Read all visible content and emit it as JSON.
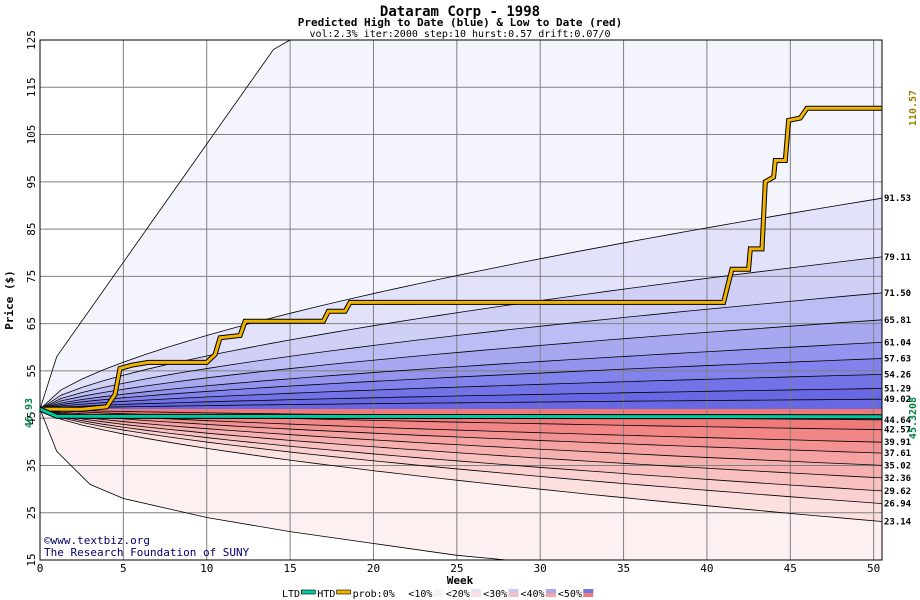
{
  "chart_data": {
    "type": "line",
    "title": "Dataram Corp - 1998",
    "subtitle": "Predicted High to Date (blue) &  Low to Date (red)",
    "params": "vol:2.3% iter:2000 step:10 hurst:0.57 drift:0.07/0",
    "xlabel": "Week",
    "ylabel": "Price ($)",
    "xlim": [
      0,
      50.5
    ],
    "ylim": [
      15,
      125
    ],
    "xticks": [
      0,
      5,
      10,
      15,
      20,
      25,
      30,
      35,
      40,
      45,
      50
    ],
    "yticks": [
      15,
      25,
      35,
      45,
      55,
      65,
      75,
      85,
      95,
      105,
      115,
      125
    ],
    "grid": true,
    "start_price": 46.93,
    "start_label": "46.93",
    "end_high_label": "110.57",
    "end_low_label": "45.3208",
    "high_quantiles": [
      49.02,
      51.29,
      54.26,
      57.63,
      61.04,
      65.81,
      71.5,
      79.11,
      91.53
    ],
    "high_quantile_labels": [
      "49.02",
      "51.29",
      "54.26",
      "57.63",
      "61.04",
      "65.81",
      "71.50",
      "79.11",
      "91.53"
    ],
    "low_quantiles": [
      44.64,
      42.57,
      39.91,
      37.61,
      35.02,
      32.36,
      29.62,
      26.94,
      23.14
    ],
    "low_quantile_labels": [
      "44.64",
      "42.57",
      "39.91",
      "37.61",
      "35.02",
      "32.36",
      "29.62",
      "26.94",
      "23.14"
    ],
    "outer_high_path": [
      [
        0,
        46.93
      ],
      [
        1,
        58
      ],
      [
        3,
        68
      ],
      [
        5,
        78
      ],
      [
        7,
        88
      ],
      [
        9,
        98
      ],
      [
        11,
        108
      ],
      [
        13,
        118
      ],
      [
        14,
        123
      ],
      [
        15,
        125
      ]
    ],
    "outer_low_path": [
      [
        0,
        46.93
      ],
      [
        1,
        38
      ],
      [
        3,
        31
      ],
      [
        5,
        28
      ],
      [
        10,
        24
      ],
      [
        15,
        21
      ],
      [
        20,
        18.5
      ],
      [
        25,
        16
      ],
      [
        28,
        15
      ]
    ],
    "series": [
      {
        "name": "HTD",
        "color": "#f0b400",
        "points": [
          [
            0,
            46.93
          ],
          [
            2.5,
            46.9
          ],
          [
            4,
            47.4
          ],
          [
            4.5,
            50
          ],
          [
            4.8,
            55.5
          ],
          [
            5.5,
            56.2
          ],
          [
            6.5,
            56.8
          ],
          [
            10,
            56.8
          ],
          [
            10.5,
            58.5
          ],
          [
            10.8,
            62
          ],
          [
            12,
            62.5
          ],
          [
            12.3,
            65.5
          ],
          [
            17,
            65.5
          ],
          [
            17.3,
            67.6
          ],
          [
            18.3,
            67.6
          ],
          [
            18.6,
            69.5
          ],
          [
            41,
            69.5
          ],
          [
            41.5,
            76.5
          ],
          [
            42.5,
            76.5
          ],
          [
            42.6,
            80.8
          ],
          [
            43.3,
            80.8
          ],
          [
            43.5,
            95
          ],
          [
            44,
            96
          ],
          [
            44.1,
            99.5
          ],
          [
            44.7,
            99.5
          ],
          [
            44.9,
            108
          ],
          [
            45.6,
            108.5
          ],
          [
            46,
            110.57
          ],
          [
            50.5,
            110.57
          ]
        ]
      },
      {
        "name": "LTD",
        "color": "#00c8a0",
        "points": [
          [
            0,
            46.93
          ],
          [
            1,
            45.4
          ],
          [
            50.5,
            45.3208
          ]
        ]
      }
    ],
    "legend": {
      "placement": "bottom",
      "items": [
        "LTD",
        "HTD",
        "prob:0%",
        "<10%",
        "<20%",
        "<30%",
        "<40%",
        "<50%"
      ]
    },
    "band_colors_high": [
      "#f4f4fd",
      "#e2e2fb",
      "#d0d0f7",
      "#bdbdf5",
      "#a8a8f1",
      "#9494ee",
      "#8282ec",
      "#7373e8",
      "#6868e4"
    ],
    "band_colors_low": [
      "#fdf0f0",
      "#fce0e0",
      "#fbd0d0",
      "#f9c0c0",
      "#f7b0b0",
      "#f5a2a2",
      "#f39292",
      "#f28686",
      "#f07a7a"
    ]
  },
  "credits": {
    "line1": "©www.textbiz.org",
    "line2": "The Research Foundation of SUNY"
  }
}
